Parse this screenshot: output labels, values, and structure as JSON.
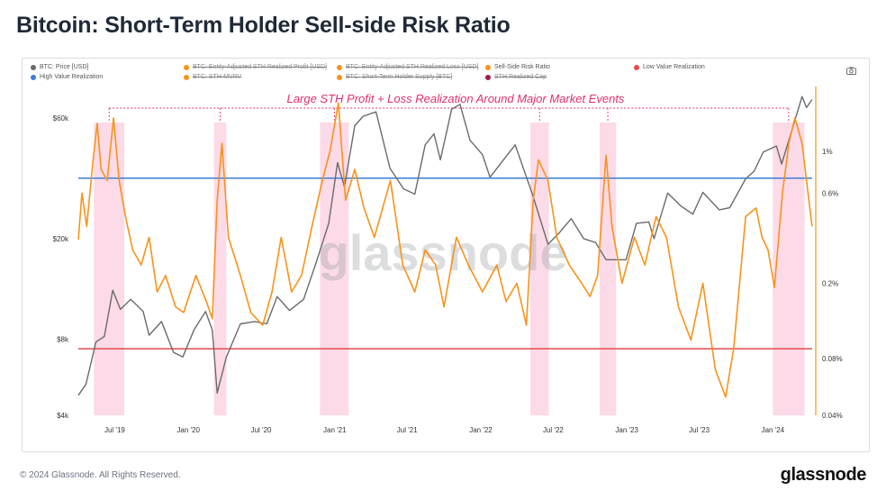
{
  "header": {
    "title": "Bitcoin: Short-Term Holder Sell-side Risk Ratio"
  },
  "legend": [
    {
      "label": "BTC: Price [USD]",
      "color": "#6b6b6b",
      "active": true
    },
    {
      "label": "BTC: Entity-Adjusted STH Realized Profit [USD]",
      "color": "#f7931a",
      "active": false
    },
    {
      "label": "BTC: Entity-Adjusted STH Realized Loss [USD]",
      "color": "#f7931a",
      "active": false
    },
    {
      "label": "Sell-Side Risk Ratio",
      "color": "#f7931a",
      "active": true
    },
    {
      "label": "Low Value Realization",
      "color": "#e54b4b",
      "active": true
    },
    {
      "label": "High Value Realization",
      "color": "#3b7ddd",
      "active": true
    },
    {
      "label": "BTC: STH-MVRV",
      "color": "#f7931a",
      "active": false
    },
    {
      "label": "BTC: Short-Term Holder Supply [BTC]",
      "color": "#f7931a",
      "active": false
    },
    {
      "label": "STH Realized Cap",
      "color": "#9b1c4b",
      "active": false
    }
  ],
  "footer": {
    "copyright": "© 2024 Glassnode. All Rights Reserved.",
    "logo": "glassnode"
  },
  "chart_data": {
    "type": "line",
    "title": "Bitcoin: Short-Term Holder Sell-side Risk Ratio",
    "annotation": "Large STH Profit + Loss Realization Around Major Market Events",
    "watermark": "glassnode",
    "x_range": [
      "2019-04-01",
      "2024-04-15"
    ],
    "x_ticks": [
      {
        "label": "Jul '19",
        "date": "2019-07-01"
      },
      {
        "label": "Jan '20",
        "date": "2020-01-01"
      },
      {
        "label": "Jul '20",
        "date": "2020-07-01"
      },
      {
        "label": "Jan '21",
        "date": "2021-01-01"
      },
      {
        "label": "Jul '21",
        "date": "2021-07-01"
      },
      {
        "label": "Jan '22",
        "date": "2022-01-01"
      },
      {
        "label": "Jul '22",
        "date": "2022-07-01"
      },
      {
        "label": "Jan '23",
        "date": "2023-01-01"
      },
      {
        "label": "Jul '23",
        "date": "2023-07-01"
      },
      {
        "label": "Jan '24",
        "date": "2024-01-01"
      }
    ],
    "y_left": {
      "scale": "log",
      "range": [
        4000,
        80000
      ],
      "ticks": [
        {
          "label": "$4k",
          "value": 4000
        },
        {
          "label": "$8k",
          "value": 8000
        },
        {
          "label": "$20k",
          "value": 20000
        },
        {
          "label": "$60k",
          "value": 60000
        }
      ]
    },
    "y_right": {
      "scale": "log",
      "range": [
        0.04,
        2.2
      ],
      "ticks": [
        {
          "label": "0.04%",
          "value": 0.04
        },
        {
          "label": "0.08%",
          "value": 0.08
        },
        {
          "label": "0.2%",
          "value": 0.2
        },
        {
          "label": "0.6%",
          "value": 0.6
        },
        {
          "label": "1%",
          "value": 1
        }
      ]
    },
    "thresholds": [
      {
        "name": "High Value Realization",
        "value": 0.72,
        "color": "#3b7ddd"
      },
      {
        "name": "Low Value Realization",
        "value": 0.09,
        "color": "#e54b4b"
      }
    ],
    "highlight_bands": [
      [
        "2019-05-10",
        "2019-07-25"
      ],
      [
        "2020-03-05",
        "2020-04-05"
      ],
      [
        "2020-11-25",
        "2021-02-05"
      ],
      [
        "2022-05-05",
        "2022-06-20"
      ],
      [
        "2022-10-25",
        "2022-12-05"
      ],
      [
        "2024-01-01",
        "2024-03-20"
      ]
    ],
    "series": [
      {
        "name": "BTC: Price [USD]",
        "color": "#6b6b6b",
        "axis": "left",
        "points": [
          [
            "2019-04-01",
            4800
          ],
          [
            "2019-04-20",
            5300
          ],
          [
            "2019-05-15",
            7800
          ],
          [
            "2019-06-05",
            8200
          ],
          [
            "2019-06-26",
            12500
          ],
          [
            "2019-07-15",
            10500
          ],
          [
            "2019-08-10",
            11500
          ],
          [
            "2019-09-10",
            10300
          ],
          [
            "2019-09-25",
            8300
          ],
          [
            "2019-10-26",
            9400
          ],
          [
            "2019-11-25",
            7100
          ],
          [
            "2019-12-18",
            6800
          ],
          [
            "2020-01-15",
            8700
          ],
          [
            "2020-02-13",
            10300
          ],
          [
            "2020-03-01",
            8700
          ],
          [
            "2020-03-13",
            4900
          ],
          [
            "2020-04-05",
            6800
          ],
          [
            "2020-05-10",
            9200
          ],
          [
            "2020-06-15",
            9400
          ],
          [
            "2020-07-15",
            9200
          ],
          [
            "2020-08-10",
            11800
          ],
          [
            "2020-09-10",
            10400
          ],
          [
            "2020-10-15",
            11500
          ],
          [
            "2020-11-15",
            16000
          ],
          [
            "2020-12-17",
            23000
          ],
          [
            "2021-01-08",
            40000
          ],
          [
            "2021-01-25",
            32000
          ],
          [
            "2021-02-20",
            56000
          ],
          [
            "2021-03-13",
            61000
          ],
          [
            "2021-04-14",
            63500
          ],
          [
            "2021-05-19",
            38000
          ],
          [
            "2021-06-22",
            31500
          ],
          [
            "2021-07-20",
            30000
          ],
          [
            "2021-08-15",
            47000
          ],
          [
            "2021-09-06",
            52000
          ],
          [
            "2021-09-22",
            41000
          ],
          [
            "2021-10-20",
            65000
          ],
          [
            "2021-11-10",
            68000
          ],
          [
            "2021-12-05",
            49000
          ],
          [
            "2022-01-05",
            43000
          ],
          [
            "2022-01-24",
            35000
          ],
          [
            "2022-03-28",
            47000
          ],
          [
            "2022-05-10",
            30000
          ],
          [
            "2022-06-18",
            19000
          ],
          [
            "2022-07-15",
            21000
          ],
          [
            "2022-08-15",
            24000
          ],
          [
            "2022-09-15",
            20000
          ],
          [
            "2022-10-15",
            19300
          ],
          [
            "2022-11-10",
            16500
          ],
          [
            "2022-12-30",
            16500
          ],
          [
            "2023-01-25",
            23000
          ],
          [
            "2023-02-25",
            23300
          ],
          [
            "2023-03-10",
            20000
          ],
          [
            "2023-04-13",
            30300
          ],
          [
            "2023-05-15",
            27000
          ],
          [
            "2023-06-15",
            25000
          ],
          [
            "2023-07-10",
            30500
          ],
          [
            "2023-08-20",
            26000
          ],
          [
            "2023-09-15",
            26500
          ],
          [
            "2023-10-25",
            34500
          ],
          [
            "2023-11-15",
            37000
          ],
          [
            "2023-12-08",
            44000
          ],
          [
            "2024-01-10",
            46500
          ],
          [
            "2024-01-23",
            39500
          ],
          [
            "2024-02-15",
            52000
          ],
          [
            "2024-03-14",
            73000
          ],
          [
            "2024-03-25",
            66000
          ],
          [
            "2024-04-08",
            71000
          ]
        ]
      },
      {
        "name": "Sell-Side Risk Ratio",
        "color": "#f7931a",
        "axis": "right",
        "points": [
          [
            "2019-04-01",
            0.34
          ],
          [
            "2019-04-10",
            0.6
          ],
          [
            "2019-04-22",
            0.4
          ],
          [
            "2019-05-08",
            0.9
          ],
          [
            "2019-05-18",
            1.4
          ],
          [
            "2019-05-28",
            0.8
          ],
          [
            "2019-06-12",
            0.7
          ],
          [
            "2019-06-28",
            1.5
          ],
          [
            "2019-07-12",
            0.7
          ],
          [
            "2019-07-28",
            0.45
          ],
          [
            "2019-08-15",
            0.3
          ],
          [
            "2019-09-05",
            0.25
          ],
          [
            "2019-09-25",
            0.35
          ],
          [
            "2019-10-15",
            0.18
          ],
          [
            "2019-11-05",
            0.22
          ],
          [
            "2019-11-30",
            0.15
          ],
          [
            "2019-12-20",
            0.14
          ],
          [
            "2020-01-20",
            0.22
          ],
          [
            "2020-02-15",
            0.16
          ],
          [
            "2020-03-01",
            0.13
          ],
          [
            "2020-03-13",
            0.55
          ],
          [
            "2020-03-25",
            1.1
          ],
          [
            "2020-04-10",
            0.35
          ],
          [
            "2020-05-10",
            0.22
          ],
          [
            "2020-06-05",
            0.14
          ],
          [
            "2020-07-05",
            0.12
          ],
          [
            "2020-07-28",
            0.18
          ],
          [
            "2020-08-20",
            0.35
          ],
          [
            "2020-09-15",
            0.18
          ],
          [
            "2020-10-10",
            0.22
          ],
          [
            "2020-11-05",
            0.4
          ],
          [
            "2020-12-01",
            0.7
          ],
          [
            "2020-12-20",
            1.0
          ],
          [
            "2021-01-10",
            1.8
          ],
          [
            "2021-01-28",
            0.55
          ],
          [
            "2021-02-20",
            0.8
          ],
          [
            "2021-03-15",
            0.5
          ],
          [
            "2021-04-10",
            0.35
          ],
          [
            "2021-05-20",
            0.7
          ],
          [
            "2021-06-20",
            0.25
          ],
          [
            "2021-07-20",
            0.18
          ],
          [
            "2021-08-15",
            0.3
          ],
          [
            "2021-09-10",
            0.25
          ],
          [
            "2021-10-01",
            0.15
          ],
          [
            "2021-11-01",
            0.35
          ],
          [
            "2021-12-01",
            0.25
          ],
          [
            "2022-01-05",
            0.18
          ],
          [
            "2022-02-10",
            0.25
          ],
          [
            "2022-03-05",
            0.16
          ],
          [
            "2022-04-01",
            0.2
          ],
          [
            "2022-04-25",
            0.12
          ],
          [
            "2022-05-12",
            0.55
          ],
          [
            "2022-05-25",
            0.9
          ],
          [
            "2022-06-18",
            0.7
          ],
          [
            "2022-07-10",
            0.35
          ],
          [
            "2022-08-10",
            0.25
          ],
          [
            "2022-09-10",
            0.2
          ],
          [
            "2022-10-01",
            0.17
          ],
          [
            "2022-10-20",
            0.22
          ],
          [
            "2022-11-10",
            0.95
          ],
          [
            "2022-11-25",
            0.4
          ],
          [
            "2022-12-20",
            0.2
          ],
          [
            "2023-01-20",
            0.35
          ],
          [
            "2023-02-15",
            0.25
          ],
          [
            "2023-03-15",
            0.45
          ],
          [
            "2023-04-10",
            0.35
          ],
          [
            "2023-05-10",
            0.15
          ],
          [
            "2023-06-10",
            0.1
          ],
          [
            "2023-07-10",
            0.2
          ],
          [
            "2023-08-10",
            0.07
          ],
          [
            "2023-09-05",
            0.05
          ],
          [
            "2023-09-25",
            0.09
          ],
          [
            "2023-10-25",
            0.45
          ],
          [
            "2023-11-20",
            0.5
          ],
          [
            "2023-12-05",
            0.35
          ],
          [
            "2023-12-20",
            0.3
          ],
          [
            "2024-01-05",
            0.19
          ],
          [
            "2024-01-25",
            0.6
          ],
          [
            "2024-02-10",
            1.1
          ],
          [
            "2024-02-25",
            1.5
          ],
          [
            "2024-03-14",
            1.1
          ],
          [
            "2024-03-25",
            0.7
          ],
          [
            "2024-04-08",
            0.4
          ]
        ]
      }
    ]
  }
}
